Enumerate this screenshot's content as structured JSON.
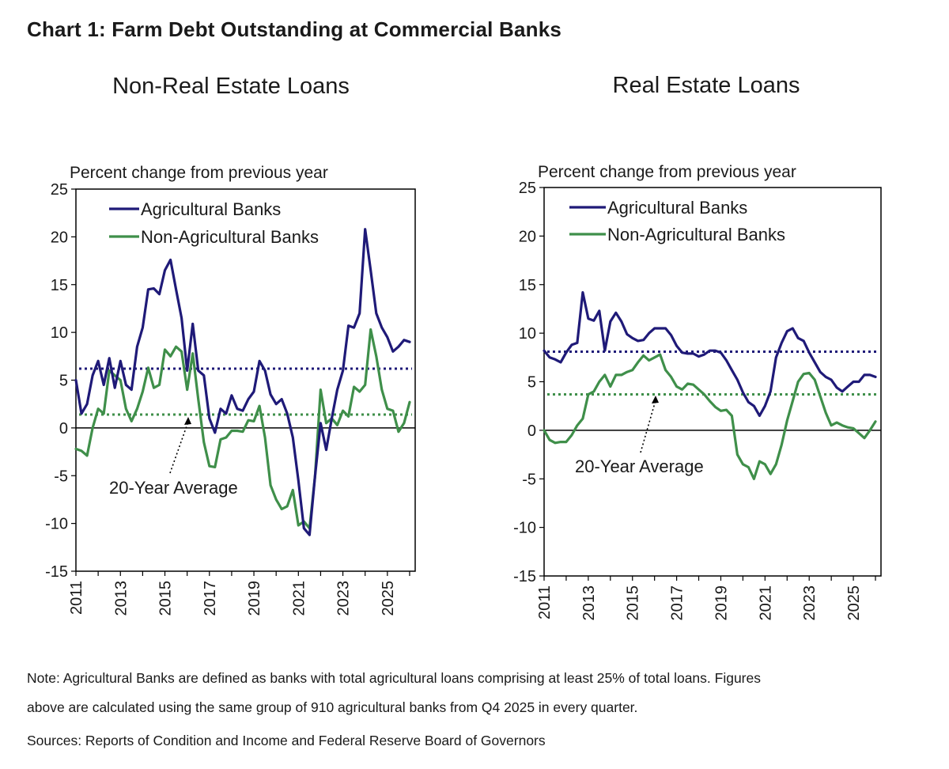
{
  "title": "Chart 1: Farm Debt Outstanding at Commercial Banks",
  "note_line1": "Note: Agricultural Banks are defined as banks with total agricultural loans comprising at least 25% of total loans. Figures",
  "note_line2": "above are calculated using the same group of 910 agricultural banks from Q4 2025 in every quarter.",
  "sources": "Sources: Reports of Condition and Income and Federal Reserve Board of Governors",
  "colors": {
    "agricultural": "#1f1a78",
    "non_agricultural": "#3f8f4a",
    "axis": "#000000"
  },
  "chart_data": [
    {
      "type": "line",
      "title": "Non-Real Estate Loans",
      "ylabel": "Percent change from previous year",
      "xlabel": "",
      "ylim": [
        -15,
        25
      ],
      "xlim": [
        2011,
        2026.25
      ],
      "yticks": [
        -15,
        -10,
        -5,
        0,
        5,
        10,
        15,
        20,
        25
      ],
      "xtick_labels": [
        "2011",
        "2013",
        "2015",
        "2017",
        "2019",
        "2021",
        "2023",
        "2025"
      ],
      "annotation": "20-Year Average",
      "legend_position": "top-left",
      "series": [
        {
          "name": "Agricultural Banks",
          "color": "#1f1a78",
          "x": [
            2011.0,
            2011.25,
            2011.5,
            2011.75,
            2012.0,
            2012.25,
            2012.5,
            2012.75,
            2013.0,
            2013.25,
            2013.5,
            2013.75,
            2014.0,
            2014.25,
            2014.5,
            2014.75,
            2015.0,
            2015.25,
            2015.5,
            2015.75,
            2016.0,
            2016.25,
            2016.5,
            2016.75,
            2017.0,
            2017.25,
            2017.5,
            2017.75,
            2018.0,
            2018.25,
            2018.5,
            2018.75,
            2019.0,
            2019.25,
            2019.5,
            2019.75,
            2020.0,
            2020.25,
            2020.5,
            2020.75,
            2021.0,
            2021.25,
            2021.5,
            2021.75,
            2022.0,
            2022.25,
            2022.5,
            2022.75,
            2023.0,
            2023.25,
            2023.5,
            2023.75,
            2024.0,
            2024.25,
            2024.5,
            2024.75,
            2025.0,
            2025.25,
            2025.5,
            2025.75,
            2026.0
          ],
          "values": [
            5.0,
            1.5,
            2.5,
            5.5,
            7.0,
            4.5,
            7.3,
            4.2,
            7.0,
            4.5,
            4.0,
            8.5,
            10.5,
            14.5,
            14.6,
            14.0,
            16.5,
            17.6,
            14.5,
            11.5,
            6.0,
            10.9,
            6.0,
            5.5,
            1.0,
            -0.5,
            2.0,
            1.5,
            3.4,
            2.0,
            1.8,
            3.0,
            3.8,
            7.0,
            6.0,
            3.5,
            2.5,
            3.0,
            1.5,
            -1.0,
            -5.5,
            -10.5,
            -11.2,
            -5.0,
            0.5,
            -2.3,
            1.0,
            4.0,
            6.0,
            10.7,
            10.5,
            12.0,
            20.8,
            16.5,
            12.0,
            10.5,
            9.5,
            8.0,
            8.5,
            9.2,
            9.0
          ]
        },
        {
          "name": "Non-Agricultural Banks",
          "color": "#3f8f4a",
          "x": [
            2011.0,
            2011.25,
            2011.5,
            2011.75,
            2012.0,
            2012.25,
            2012.5,
            2012.75,
            2013.0,
            2013.25,
            2013.5,
            2013.75,
            2014.0,
            2014.25,
            2014.5,
            2014.75,
            2015.0,
            2015.25,
            2015.5,
            2015.75,
            2016.0,
            2016.25,
            2016.5,
            2016.75,
            2017.0,
            2017.25,
            2017.5,
            2017.75,
            2018.0,
            2018.25,
            2018.5,
            2018.75,
            2019.0,
            2019.25,
            2019.5,
            2019.75,
            2020.0,
            2020.25,
            2020.5,
            2020.75,
            2021.0,
            2021.25,
            2021.5,
            2021.75,
            2022.0,
            2022.25,
            2022.5,
            2022.75,
            2023.0,
            2023.25,
            2023.5,
            2023.75,
            2024.0,
            2024.25,
            2024.5,
            2024.75,
            2025.0,
            2025.25,
            2025.5,
            2025.75,
            2026.0
          ],
          "values": [
            -2.2,
            -2.4,
            -2.9,
            0.0,
            2.0,
            1.5,
            6.0,
            5.5,
            5.0,
            2.0,
            0.7,
            2.0,
            3.8,
            6.3,
            4.2,
            4.5,
            8.2,
            7.5,
            8.5,
            8.0,
            4.0,
            7.8,
            3.0,
            -1.5,
            -4.0,
            -4.1,
            -1.2,
            -1.0,
            -0.3,
            -0.3,
            -0.4,
            0.8,
            0.7,
            2.3,
            -1.0,
            -6.0,
            -7.5,
            -8.5,
            -8.2,
            -6.5,
            -10.2,
            -9.8,
            -10.5,
            -5.0,
            4.0,
            0.5,
            1.0,
            0.3,
            1.8,
            1.2,
            4.3,
            3.8,
            4.5,
            10.3,
            7.5,
            4.0,
            2.0,
            1.8,
            -0.4,
            0.5,
            2.7
          ]
        }
      ],
      "reference_lines": [
        {
          "label": "20-Year Average",
          "series": "Agricultural Banks",
          "value": 6.2,
          "color": "#1f1a78"
        },
        {
          "label": "20-Year Average",
          "series": "Non-Agricultural Banks",
          "value": 1.4,
          "color": "#3f8f4a"
        }
      ]
    },
    {
      "type": "line",
      "title": "Real Estate Loans",
      "ylabel": "Percent change from previous year",
      "xlabel": "",
      "ylim": [
        -15,
        25
      ],
      "xlim": [
        2011,
        2026.25
      ],
      "yticks": [
        -15,
        -10,
        -5,
        0,
        5,
        10,
        15,
        20,
        25
      ],
      "xtick_labels": [
        "2011",
        "2013",
        "2015",
        "2017",
        "2019",
        "2021",
        "2023",
        "2025"
      ],
      "annotation": "20-Year Average",
      "legend_position": "top-left",
      "series": [
        {
          "name": "Agricultural Banks",
          "color": "#1f1a78",
          "x": [
            2011.0,
            2011.25,
            2011.5,
            2011.75,
            2012.0,
            2012.25,
            2012.5,
            2012.75,
            2013.0,
            2013.25,
            2013.5,
            2013.75,
            2014.0,
            2014.25,
            2014.5,
            2014.75,
            2015.0,
            2015.25,
            2015.5,
            2015.75,
            2016.0,
            2016.25,
            2016.5,
            2016.75,
            2017.0,
            2017.25,
            2017.5,
            2017.75,
            2018.0,
            2018.25,
            2018.5,
            2018.75,
            2019.0,
            2019.25,
            2019.5,
            2019.75,
            2020.0,
            2020.25,
            2020.5,
            2020.75,
            2021.0,
            2021.25,
            2021.5,
            2021.75,
            2022.0,
            2022.25,
            2022.5,
            2022.75,
            2023.0,
            2023.25,
            2023.5,
            2023.75,
            2024.0,
            2024.25,
            2024.5,
            2024.75,
            2025.0,
            2025.25,
            2025.5,
            2025.75,
            2026.0
          ],
          "values": [
            8.2,
            7.5,
            7.3,
            7.0,
            8.0,
            8.8,
            9.0,
            14.2,
            11.5,
            11.3,
            12.3,
            8.2,
            11.2,
            12.1,
            11.2,
            9.9,
            9.5,
            9.2,
            9.3,
            10.0,
            10.5,
            10.5,
            10.5,
            9.8,
            8.7,
            8.0,
            7.9,
            7.9,
            7.6,
            7.8,
            8.2,
            8.2,
            8.0,
            7.2,
            6.2,
            5.2,
            3.9,
            2.9,
            2.5,
            1.5,
            2.5,
            4.0,
            7.5,
            9.0,
            10.2,
            10.5,
            9.5,
            9.2,
            8.0,
            7.0,
            6.0,
            5.5,
            5.2,
            4.4,
            4.0,
            4.5,
            5.0,
            5.0,
            5.7,
            5.7,
            5.5
          ]
        },
        {
          "name": "Non-Agricultural Banks",
          "color": "#3f8f4a",
          "x": [
            2011.0,
            2011.25,
            2011.5,
            2011.75,
            2012.0,
            2012.25,
            2012.5,
            2012.75,
            2013.0,
            2013.25,
            2013.5,
            2013.75,
            2014.0,
            2014.25,
            2014.5,
            2014.75,
            2015.0,
            2015.25,
            2015.5,
            2015.75,
            2016.0,
            2016.25,
            2016.5,
            2016.75,
            2017.0,
            2017.25,
            2017.5,
            2017.75,
            2018.0,
            2018.25,
            2018.5,
            2018.75,
            2019.0,
            2019.25,
            2019.5,
            2019.75,
            2020.0,
            2020.25,
            2020.5,
            2020.75,
            2021.0,
            2021.25,
            2021.5,
            2021.75,
            2022.0,
            2022.25,
            2022.5,
            2022.75,
            2023.0,
            2023.25,
            2023.5,
            2023.75,
            2024.0,
            2024.25,
            2024.5,
            2024.75,
            2025.0,
            2025.25,
            2025.5,
            2025.75,
            2026.0
          ],
          "values": [
            0.0,
            -1.0,
            -1.3,
            -1.2,
            -1.2,
            -0.5,
            0.5,
            1.2,
            3.7,
            4.0,
            5.0,
            5.7,
            4.5,
            5.7,
            5.7,
            6.0,
            6.2,
            7.0,
            7.7,
            7.2,
            7.5,
            7.8,
            6.2,
            5.5,
            4.5,
            4.2,
            4.8,
            4.7,
            4.2,
            3.7,
            3.0,
            2.4,
            2.0,
            2.1,
            1.5,
            -2.5,
            -3.5,
            -3.8,
            -5.0,
            -3.2,
            -3.5,
            -4.5,
            -3.5,
            -1.5,
            1.0,
            3.0,
            5.0,
            5.8,
            5.9,
            5.2,
            3.5,
            1.8,
            0.5,
            0.8,
            0.5,
            0.3,
            0.2,
            -0.3,
            -0.8,
            0.0,
            0.9
          ]
        }
      ],
      "reference_lines": [
        {
          "label": "20-Year Average",
          "series": "Agricultural Banks",
          "value": 8.1,
          "color": "#1f1a78"
        },
        {
          "label": "20-Year Average",
          "series": "Non-Agricultural Banks",
          "value": 3.7,
          "color": "#3f8f4a"
        }
      ]
    }
  ]
}
